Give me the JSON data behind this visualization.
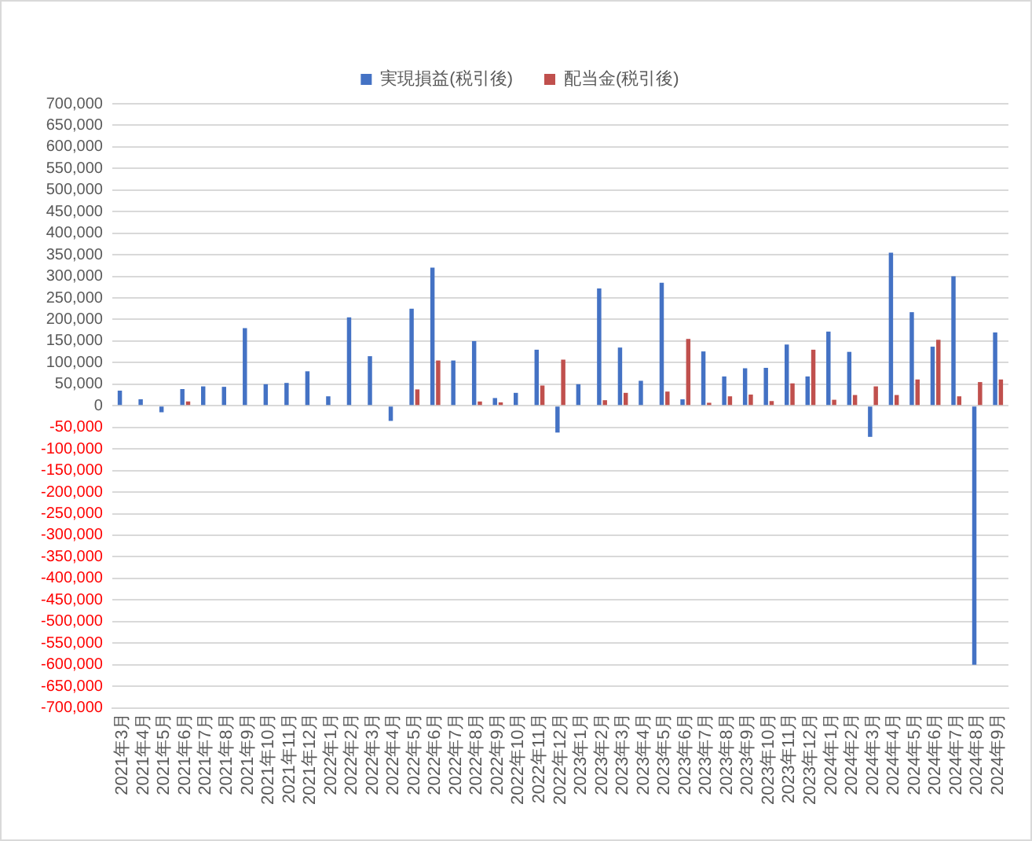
{
  "chart_data": {
    "type": "bar",
    "categories": [
      "2021年3月",
      "2021年4月",
      "2021年5月",
      "2021年6月",
      "2021年7月",
      "2021年8月",
      "2021年9月",
      "2021年10月",
      "2021年11月",
      "2021年12月",
      "2022年1月",
      "2022年2月",
      "2022年3月",
      "2022年4月",
      "2022年5月",
      "2022年6月",
      "2022年7月",
      "2022年8月",
      "2022年9月",
      "2022年10月",
      "2022年11月",
      "2022年12月",
      "2023年1月",
      "2023年2月",
      "2023年3月",
      "2023年4月",
      "2023年5月",
      "2023年6月",
      "2023年7月",
      "2023年8月",
      "2023年9月",
      "2023年10月",
      "2023年11月",
      "2023年12月",
      "2024年1月",
      "2024年2月",
      "2024年3月",
      "2024年4月",
      "2024年5月",
      "2024年6月",
      "2024年7月",
      "2024年8月",
      "2024年9月"
    ],
    "series": [
      {
        "name": "実現損益(税引後)",
        "color": "#4472c4",
        "values": [
          35000,
          15000,
          -15000,
          39000,
          45000,
          44000,
          180000,
          50000,
          53000,
          80000,
          22000,
          205000,
          115000,
          -35000,
          225000,
          320000,
          105000,
          150000,
          18000,
          30000,
          130000,
          -62000,
          50000,
          272000,
          135000,
          58000,
          285000,
          15000,
          126000,
          68000,
          87000,
          88000,
          142000,
          68000,
          172000,
          125000,
          -72000,
          355000,
          217000,
          137000,
          300000,
          -600000,
          170000
        ]
      },
      {
        "name": "配当金(税引後)",
        "color": "#c0504d",
        "values": [
          0,
          0,
          0,
          10000,
          0,
          0,
          0,
          0,
          0,
          null,
          0,
          0,
          null,
          0,
          38000,
          105000,
          null,
          10000,
          8000,
          0,
          47000,
          107000,
          0,
          13000,
          30000,
          0,
          33000,
          155000,
          7000,
          22000,
          26000,
          11000,
          52000,
          130000,
          14000,
          25000,
          45000,
          25000,
          61000,
          153000,
          22000,
          55000,
          61000
        ]
      }
    ],
    "ylim": [
      -700000,
      700000
    ],
    "yticks": [
      {
        "value": -700000,
        "label": "-700,000"
      },
      {
        "value": -650000,
        "label": "-650,000"
      },
      {
        "value": -600000,
        "label": "-600,000"
      },
      {
        "value": -550000,
        "label": "-550,000"
      },
      {
        "value": -500000,
        "label": "-500,000"
      },
      {
        "value": -450000,
        "label": "-450,000"
      },
      {
        "value": -400000,
        "label": "-400,000"
      },
      {
        "value": -350000,
        "label": "-350,000"
      },
      {
        "value": -300000,
        "label": "-300,000"
      },
      {
        "value": -250000,
        "label": "-250,000"
      },
      {
        "value": -200000,
        "label": "-200,000"
      },
      {
        "value": -150000,
        "label": "-150,000"
      },
      {
        "value": -100000,
        "label": "-100,000"
      },
      {
        "value": -50000,
        "label": "-50,000"
      },
      {
        "value": 0,
        "label": "0"
      },
      {
        "value": 50000,
        "label": "50,000"
      },
      {
        "value": 100000,
        "label": "100,000"
      },
      {
        "value": 150000,
        "label": "150,000"
      },
      {
        "value": 200000,
        "label": "200,000"
      },
      {
        "value": 250000,
        "label": "250,000"
      },
      {
        "value": 300000,
        "label": "300,000"
      },
      {
        "value": 350000,
        "label": "350,000"
      },
      {
        "value": 400000,
        "label": "400,000"
      },
      {
        "value": 450000,
        "label": "450,000"
      },
      {
        "value": 500000,
        "label": "500,000"
      },
      {
        "value": 550000,
        "label": "550,000"
      },
      {
        "value": 600000,
        "label": "600,000"
      },
      {
        "value": 650000,
        "label": "650,000"
      },
      {
        "value": 700000,
        "label": "700,000"
      }
    ],
    "grid": "y",
    "legend": "top"
  }
}
